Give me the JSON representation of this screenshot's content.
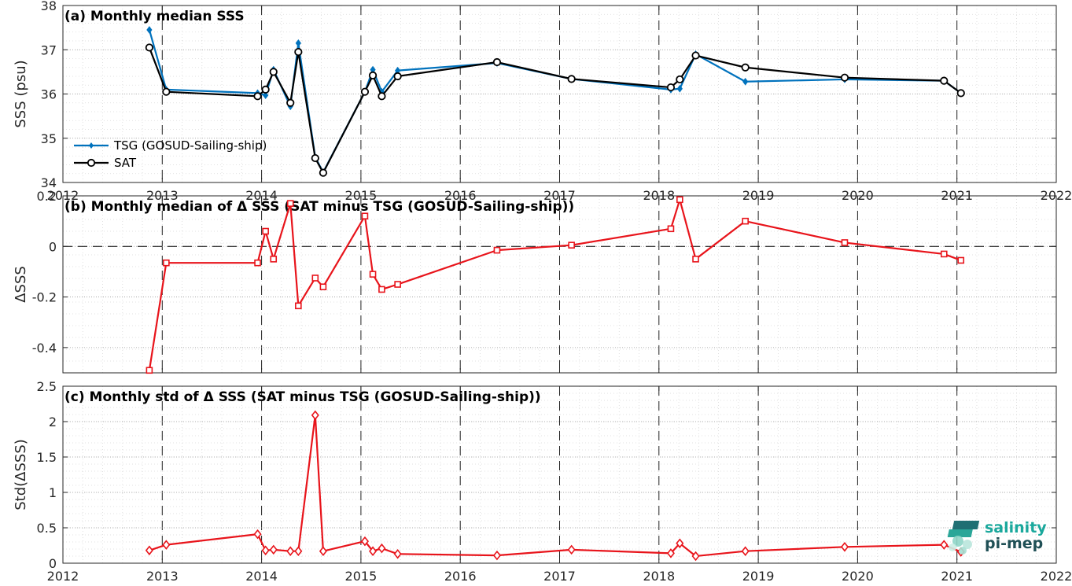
{
  "figure": {
    "colors": {
      "tsg": "#0072BD",
      "sat": "#000000",
      "delta": "#E8141B"
    },
    "logo": {
      "line1": "salinity",
      "line2": "pi-mep"
    }
  },
  "chart_data": [
    {
      "type": "line",
      "title": "(a) Monthly median SSS",
      "xlabel": "",
      "ylabel": "SSS (psu)",
      "xlim": [
        2012,
        2022
      ],
      "ylim": [
        34,
        38
      ],
      "xticks": [
        "2012",
        "2013",
        "2014",
        "2015",
        "2016",
        "2017",
        "2018",
        "2019",
        "2020",
        "2021",
        "2022"
      ],
      "yticks": [
        "34",
        "35",
        "36",
        "37",
        "38"
      ],
      "grid": true,
      "legend": "lower-left",
      "series": [
        {
          "name": "TSG (GOSUD-Sailing-ship)",
          "marker": "diamond",
          "x": [
            2012.87,
            2013.04,
            2013.96,
            2014.04,
            2014.12,
            2014.29,
            2014.37,
            2014.54,
            2014.62,
            2015.04,
            2015.12,
            2015.21,
            2015.37,
            2016.37,
            2017.12,
            2018.12,
            2018.21,
            2018.37,
            2018.87,
            2019.87,
            2020.87,
            2021.04
          ],
          "y": [
            37.45,
            36.1,
            36.02,
            35.97,
            36.55,
            35.72,
            37.15,
            34.57,
            34.23,
            36.05,
            36.55,
            36.05,
            36.53,
            36.7,
            36.34,
            36.1,
            36.12,
            36.9,
            36.28,
            36.33,
            36.3,
            36.02
          ]
        },
        {
          "name": "SAT",
          "marker": "circle",
          "x": [
            2012.87,
            2013.04,
            2013.96,
            2014.04,
            2014.12,
            2014.29,
            2014.37,
            2014.54,
            2014.62,
            2015.04,
            2015.12,
            2015.21,
            2015.37,
            2016.37,
            2017.12,
            2018.12,
            2018.21,
            2018.37,
            2018.87,
            2019.87,
            2020.87,
            2021.04
          ],
          "y": [
            37.05,
            36.05,
            35.95,
            36.1,
            36.5,
            35.8,
            36.95,
            34.55,
            34.22,
            36.05,
            36.42,
            35.95,
            36.4,
            36.72,
            36.34,
            36.15,
            36.33,
            36.87,
            36.6,
            36.37,
            36.3,
            36.02
          ]
        }
      ]
    },
    {
      "type": "line",
      "title": "(b) Monthly median of Δ SSS (SAT minus TSG (GOSUD-Sailing-ship))",
      "xlabel": "",
      "ylabel": "ΔSSS",
      "xlim": [
        2012,
        2022
      ],
      "ylim": [
        -0.5,
        0.2
      ],
      "xticks": [],
      "yticks": [
        "-0.4",
        "-0.2",
        "0",
        "0.2"
      ],
      "grid": true,
      "zero_line": true,
      "series": [
        {
          "name": "",
          "marker": "square",
          "x": [
            2012.87,
            2013.04,
            2013.96,
            2014.04,
            2014.12,
            2014.29,
            2014.37,
            2014.54,
            2014.62,
            2015.04,
            2015.12,
            2015.21,
            2015.37,
            2016.37,
            2017.12,
            2018.12,
            2018.21,
            2018.37,
            2018.87,
            2019.87,
            2020.87,
            2021.04
          ],
          "y": [
            -0.49,
            -0.065,
            -0.065,
            0.06,
            -0.05,
            0.17,
            -0.235,
            -0.125,
            -0.16,
            0.12,
            -0.11,
            -0.17,
            -0.15,
            -0.015,
            0.005,
            0.07,
            0.185,
            -0.05,
            0.1,
            0.015,
            -0.03,
            -0.055
          ]
        }
      ]
    },
    {
      "type": "line",
      "title": "(c) Monthly std of Δ SSS (SAT minus TSG (GOSUD-Sailing-ship))",
      "xlabel": "",
      "ylabel": "Std(ΔSSS)",
      "xlim": [
        2012,
        2022
      ],
      "ylim": [
        0,
        2.5
      ],
      "xticks": [
        "2012",
        "2013",
        "2014",
        "2015",
        "2016",
        "2017",
        "2018",
        "2019",
        "2020",
        "2021",
        "2022"
      ],
      "yticks": [
        "0",
        "0.5",
        "1",
        "1.5",
        "2",
        "2.5"
      ],
      "grid": true,
      "series": [
        {
          "name": "",
          "marker": "diamond-open",
          "x": [
            2012.87,
            2013.04,
            2013.96,
            2014.04,
            2014.12,
            2014.29,
            2014.37,
            2014.54,
            2014.62,
            2015.04,
            2015.12,
            2015.21,
            2015.37,
            2016.37,
            2017.12,
            2018.12,
            2018.21,
            2018.37,
            2018.87,
            2019.87,
            2020.87,
            2021.04
          ],
          "y": [
            0.18,
            0.26,
            0.41,
            0.18,
            0.19,
            0.17,
            0.17,
            2.09,
            0.17,
            0.31,
            0.17,
            0.21,
            0.13,
            0.11,
            0.19,
            0.14,
            0.28,
            0.1,
            0.17,
            0.23,
            0.26,
            0.16
          ]
        }
      ]
    }
  ]
}
